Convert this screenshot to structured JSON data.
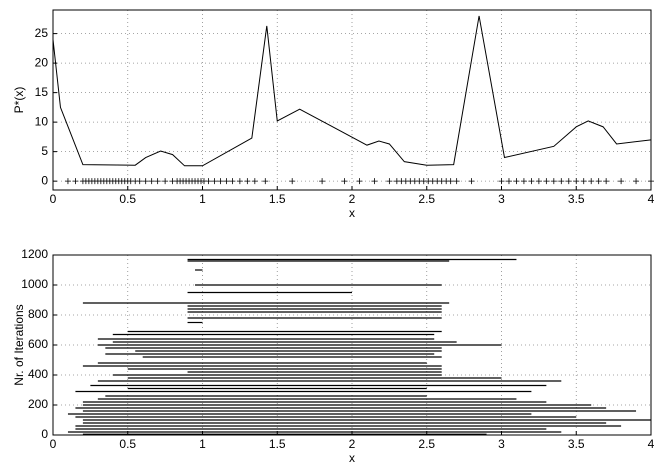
{
  "chart_data": [
    {
      "type": "line",
      "xlabel": "x",
      "ylabel": "P*(x)",
      "x": [
        0,
        0.05,
        0.2,
        0.55,
        0.62,
        0.72,
        0.8,
        0.88,
        1.0,
        1.33,
        1.43,
        1.5,
        1.65,
        2.1,
        2.18,
        2.25,
        2.35,
        2.5,
        2.68,
        2.85,
        3.02,
        3.35,
        3.5,
        3.58,
        3.68,
        3.77,
        4.0
      ],
      "values": [
        24,
        12.5,
        2.8,
        2.7,
        4,
        5.1,
        4.5,
        2.6,
        2.6,
        7.3,
        26.3,
        10.2,
        12.2,
        6.1,
        6.8,
        6.3,
        3.3,
        2.7,
        2.8,
        28,
        4,
        5.9,
        9.2,
        10.2,
        9.2,
        6.3,
        7
      ],
      "samples_x": [
        0.1,
        0.15,
        0.2,
        0.22,
        0.24,
        0.26,
        0.28,
        0.3,
        0.32,
        0.34,
        0.36,
        0.38,
        0.4,
        0.42,
        0.44,
        0.46,
        0.48,
        0.5,
        0.52,
        0.55,
        0.58,
        0.62,
        0.66,
        0.7,
        0.75,
        0.8,
        0.83,
        0.85,
        0.87,
        0.89,
        0.91,
        0.93,
        0.95,
        0.97,
        0.99,
        1.01,
        1.04,
        1.08,
        1.12,
        1.16,
        1.2,
        1.25,
        1.3,
        1.35,
        1.42,
        1.6,
        1.8,
        1.95,
        2.05,
        2.15,
        2.25,
        2.3,
        2.33,
        2.36,
        2.39,
        2.42,
        2.45,
        2.48,
        2.51,
        2.54,
        2.57,
        2.6,
        2.63,
        2.66,
        2.7,
        2.8,
        3.0,
        3.05,
        3.1,
        3.15,
        3.2,
        3.25,
        3.3,
        3.35,
        3.4,
        3.45,
        3.5,
        3.55,
        3.6,
        3.65,
        3.7,
        3.8,
        3.9,
        4.0
      ],
      "samples_y": 0,
      "xlim": [
        0,
        4
      ],
      "ylim": [
        -1.5,
        29
      ],
      "xticks": [
        0,
        0.5,
        1,
        1.5,
        2,
        2.5,
        3,
        3.5,
        4
      ],
      "yticks": [
        0,
        5,
        10,
        15,
        20,
        25
      ],
      "grid": true,
      "color": "#000000"
    },
    {
      "type": "range",
      "xlabel": "x",
      "ylabel": "Nr. of Iterations",
      "x_start": [
        0.9,
        0.9,
        0.95,
        0.95,
        0.9,
        0.2,
        0.9,
        0.9,
        0.9,
        0.9,
        0.9,
        0.5,
        0.4,
        0.3,
        0.4,
        0.3,
        0.35,
        0.55,
        0.35,
        0.6,
        0.3,
        0.2,
        0.5,
        0.9,
        0.4,
        0.5,
        0.3,
        0.25,
        0.5,
        0.15,
        0.35,
        0.3,
        0.2,
        0.2,
        0.15,
        0.2,
        0.1,
        0.15,
        0.2,
        0.2,
        0.15,
        0.15,
        0.1,
        0.2
      ],
      "x_end": [
        3.1,
        2.65,
        1.0,
        2.6,
        2.0,
        2.65,
        2.6,
        2.6,
        2.6,
        2.6,
        1.0,
        2.6,
        2.55,
        2.55,
        2.7,
        3.0,
        2.6,
        2.6,
        2.55,
        2.6,
        2.5,
        2.6,
        2.6,
        2.6,
        2.6,
        3.0,
        3.4,
        3.3,
        2.5,
        3.2,
        2.5,
        3.1,
        3.3,
        3.6,
        3.7,
        3.9,
        3.2,
        3.5,
        4.0,
        3.7,
        3.8,
        3.3,
        3.4,
        2.9
      ],
      "values": [
        1170,
        1160,
        1100,
        1000,
        950,
        880,
        860,
        840,
        820,
        780,
        750,
        690,
        670,
        640,
        620,
        600,
        580,
        560,
        540,
        520,
        480,
        460,
        440,
        420,
        400,
        380,
        360,
        330,
        310,
        290,
        260,
        240,
        220,
        200,
        180,
        160,
        140,
        120,
        100,
        80,
        60,
        40,
        20,
        5
      ],
      "xlim": [
        0,
        4
      ],
      "ylim": [
        0,
        1200
      ],
      "xticks": [
        0,
        0.5,
        1,
        1.5,
        2,
        2.5,
        3,
        3.5,
        4
      ],
      "yticks": [
        0,
        200,
        400,
        600,
        800,
        1000,
        1200
      ],
      "grid": true,
      "color": "#000000"
    }
  ]
}
